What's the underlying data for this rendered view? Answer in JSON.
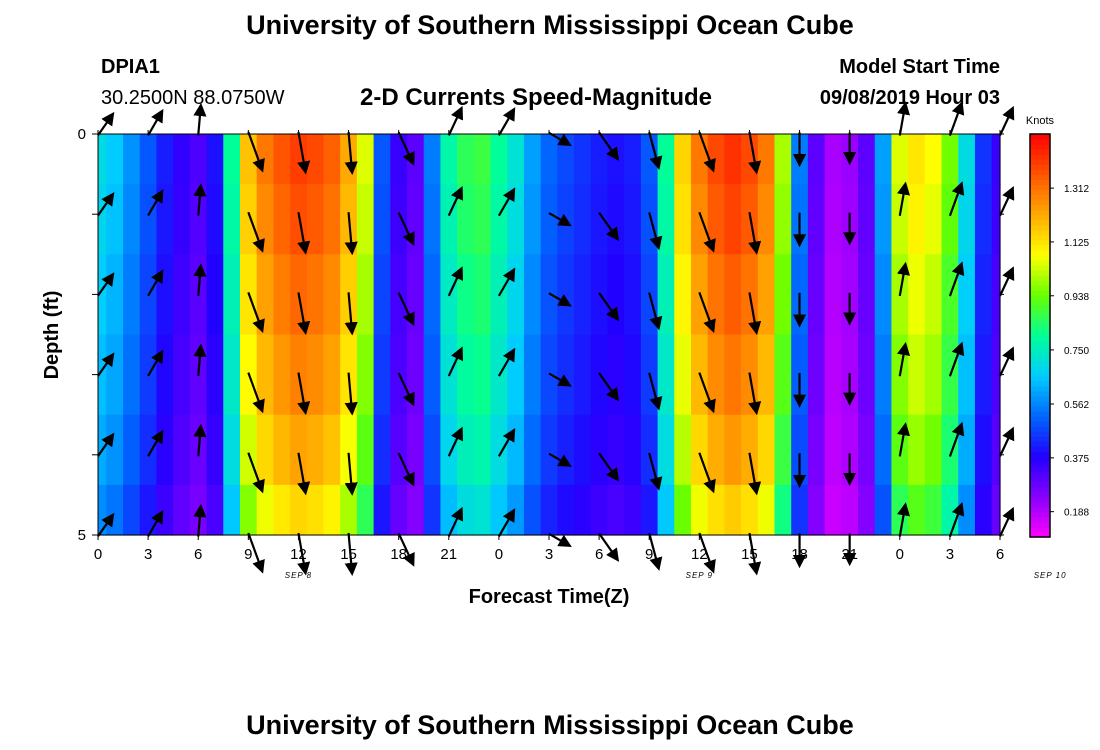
{
  "header": {
    "title": "University of Southern Mississippi Ocean Cube",
    "station": "DPIA1",
    "location": "30.2500N 88.0750W",
    "plot_title": "2-D Currents Speed-Magnitude",
    "model_start_label": "Model Start Time",
    "model_start_value": "09/08/2019 Hour 03"
  },
  "footer": {
    "title": "University of Southern Mississippi Ocean Cube"
  },
  "chart_data": {
    "type": "heatmap",
    "xlabel": "Forecast Time(Z)",
    "ylabel": "Depth (ft)",
    "x_tick_labels": [
      "0",
      "3",
      "6",
      "9",
      "12",
      "15",
      "18",
      "21",
      "0",
      "3",
      "6",
      "9",
      "12",
      "15",
      "18",
      "21",
      "0",
      "3",
      "6"
    ],
    "day_labels": [
      "SEP 8",
      "SEP 9",
      "SEP 10"
    ],
    "day_label_hours": [
      12,
      36,
      57
    ],
    "y_tick_labels": [
      "0",
      "5"
    ],
    "x_hours_range": [
      0,
      54
    ],
    "depth_range": [
      0,
      5
    ],
    "colorbar": {
      "unit": "Knots",
      "ticks": [
        "1.312",
        "1.125",
        "0.938",
        "0.750",
        "0.562",
        "0.375",
        "0.188"
      ],
      "range": [
        0.1,
        1.5
      ]
    },
    "colors": {
      "stops": [
        "#ff00ff",
        "#8800ff",
        "#2200ff",
        "#0066ff",
        "#00ccff",
        "#00ff99",
        "#66ff00",
        "#ffff00",
        "#ffaa00",
        "#ff5500",
        "#ff0000"
      ]
    },
    "time_hours": [
      0,
      1,
      2,
      3,
      4,
      5,
      6,
      7,
      8,
      9,
      10,
      11,
      12,
      13,
      14,
      15,
      16,
      17,
      18,
      19,
      20,
      21,
      22,
      23,
      24,
      25,
      26,
      27,
      28,
      29,
      30,
      31,
      32,
      33,
      34,
      35,
      36,
      37,
      38,
      39,
      40,
      41,
      42,
      43,
      44,
      45,
      46,
      47,
      48,
      49,
      50,
      51,
      52,
      53,
      54
    ],
    "depth_bins": [
      0.25,
      1.0,
      2.0,
      3.0,
      4.0,
      4.75
    ],
    "speed_profile": [
      0.7,
      0.66,
      0.58,
      0.5,
      0.42,
      0.36,
      0.32,
      0.4,
      0.8,
      1.18,
      1.3,
      1.36,
      1.4,
      1.38,
      1.34,
      1.22,
      1.05,
      0.5,
      0.35,
      0.3,
      0.55,
      0.78,
      0.86,
      0.88,
      0.8,
      0.72,
      0.6,
      0.52,
      0.48,
      0.45,
      0.42,
      0.4,
      0.42,
      0.5,
      0.8,
      1.15,
      1.3,
      1.38,
      1.42,
      1.38,
      1.3,
      1.0,
      0.55,
      0.3,
      0.2,
      0.22,
      0.3,
      0.6,
      1.05,
      1.12,
      1.08,
      0.95,
      0.7,
      0.45,
      0.35
    ],
    "depth_factor": [
      1.0,
      0.98,
      0.95,
      0.92,
      0.88,
      0.82
    ],
    "arrow_times": [
      0,
      3,
      6,
      9,
      12,
      15,
      18,
      21,
      24,
      27,
      30,
      33,
      36,
      39,
      42,
      45,
      48,
      51,
      54
    ],
    "arrow_depths": [
      0,
      1,
      2,
      3,
      4,
      5
    ],
    "arrow_directions_deg": [
      35,
      30,
      5,
      160,
      170,
      175,
      155,
      25,
      30,
      120,
      145,
      165,
      160,
      170,
      180,
      180,
      10,
      20,
      25
    ],
    "arrow_lengths": [
      0.6,
      0.65,
      0.7,
      0.95,
      0.95,
      0.95,
      0.8,
      0.7,
      0.7,
      0.55,
      0.75,
      0.85,
      0.95,
      0.95,
      0.75,
      0.7,
      0.75,
      0.8,
      0.7
    ]
  }
}
